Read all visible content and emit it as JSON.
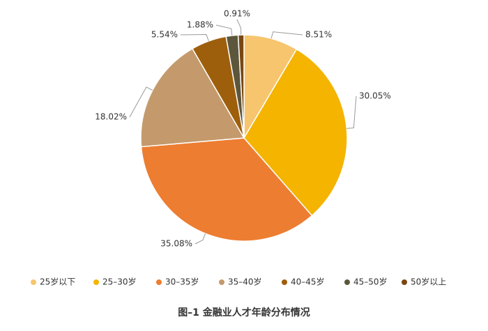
{
  "chart_data": {
    "type": "pie",
    "title": "图–1 金融业人才年龄分布情况",
    "categories": [
      "25岁以下",
      "25–30岁",
      "30–35岁",
      "35–40岁",
      "40–45岁",
      "45–50岁",
      "50岁以上"
    ],
    "values": [
      8.51,
      30.05,
      35.08,
      18.02,
      5.54,
      1.88,
      0.91
    ],
    "value_labels": [
      "8.51%",
      "30.05%",
      "35.08%",
      "18.02%",
      "5.54%",
      "1.88%",
      "0.91%"
    ],
    "colors": [
      "#f6c56e",
      "#f4b400",
      "#ed7d31",
      "#c49a6c",
      "#9e5f0c",
      "#5c573c",
      "#7a4712"
    ],
    "legend": "bottom"
  }
}
